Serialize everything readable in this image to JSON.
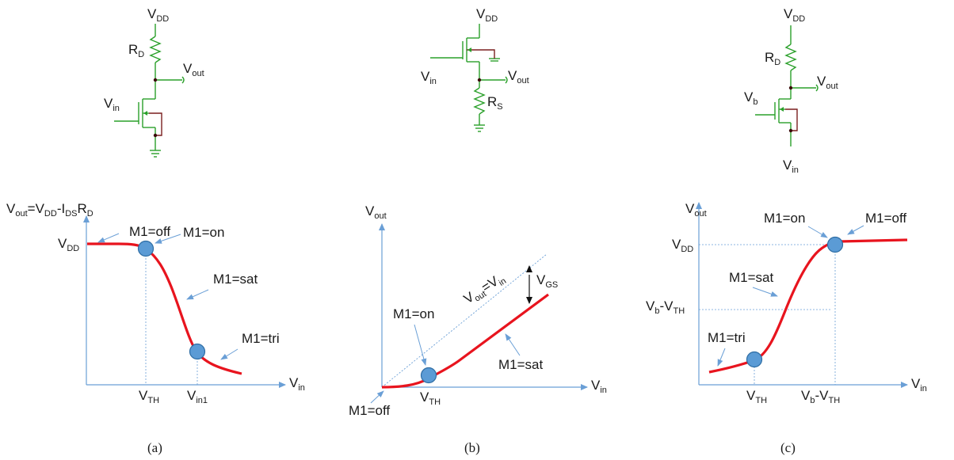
{
  "colors": {
    "wire": "#2aa02a",
    "body_wire": "#7a1f1f",
    "node": "#3a0a0a",
    "axis": "#6a9fd6",
    "curve": "#e8141e",
    "dot_fill": "#5b9bd5",
    "dot_stroke": "#2e6da4",
    "dash": "#6a9fd6",
    "arrow": "#6a9fd6",
    "text": "#1a1a1a"
  },
  "panels": [
    {
      "id": "a",
      "caption": "(a)",
      "circuit": {
        "vdd": "V",
        "vdd_sub": "DD",
        "r": "R",
        "r_sub": "D",
        "out": "V",
        "out_sub": "out",
        "in": "V",
        "in_sub": "in"
      },
      "y_axis_label": {
        "parts": [
          [
            "V",
            ""
          ],
          [
            "out",
            "sub"
          ],
          [
            "=V",
            ""
          ],
          [
            "DD",
            "sub"
          ],
          [
            "-I",
            ""
          ],
          [
            "DS",
            "sub"
          ],
          [
            "R",
            ""
          ],
          [
            "D",
            "sub"
          ]
        ]
      },
      "x_axis_label": {
        "main": "V",
        "sub": "in"
      },
      "ticks": [
        {
          "main": "V",
          "sub": "DD"
        },
        {
          "main": "V",
          "sub": "TH"
        },
        {
          "main": "V",
          "sub": "in1"
        }
      ],
      "annotations": [
        "M1=off",
        "M1=on",
        "M1=sat",
        "M1=tri"
      ]
    },
    {
      "id": "b",
      "caption": "(b)",
      "circuit": {
        "vdd": "V",
        "vdd_sub": "DD",
        "r": "R",
        "r_sub": "S",
        "out": "V",
        "out_sub": "out",
        "in": "V",
        "in_sub": "in"
      },
      "y_axis_label": {
        "main": "V",
        "sub": "out"
      },
      "x_axis_label": {
        "main": "V",
        "sub": "in"
      },
      "diag_label": {
        "parts": [
          [
            "V",
            ""
          ],
          [
            "out",
            "sub"
          ],
          [
            "=V",
            ""
          ],
          [
            "in",
            "sub"
          ]
        ]
      },
      "gap_label": {
        "main": "V",
        "sub": "GS"
      },
      "ticks": [
        {
          "main": "V",
          "sub": "TH"
        }
      ],
      "annotations": [
        "M1=on",
        "M1=sat",
        "M1=off"
      ]
    },
    {
      "id": "c",
      "caption": "(c)",
      "circuit": {
        "vdd": "V",
        "vdd_sub": "DD",
        "r": "R",
        "r_sub": "D",
        "out": "V",
        "out_sub": "out",
        "b": "V",
        "b_sub": "b",
        "in": "V",
        "in_sub": "in"
      },
      "y_axis_label": {
        "main": "V",
        "sub": "out"
      },
      "x_axis_label": {
        "main": "V",
        "sub": "in"
      },
      "ticks": [
        {
          "main": "V",
          "sub": "DD"
        },
        {
          "parts": [
            [
              "V",
              ""
            ],
            [
              "b",
              "sub"
            ],
            [
              "-V",
              ""
            ],
            [
              "TH",
              "sub"
            ]
          ]
        },
        {
          "main": "V",
          "sub": "TH"
        },
        {
          "parts": [
            [
              "V",
              ""
            ],
            [
              "b",
              "sub"
            ],
            [
              "-V",
              ""
            ],
            [
              "TH",
              "sub"
            ]
          ]
        }
      ],
      "annotations": [
        "M1=on",
        "M1=off",
        "M1=sat",
        "M1=tri"
      ]
    }
  ]
}
